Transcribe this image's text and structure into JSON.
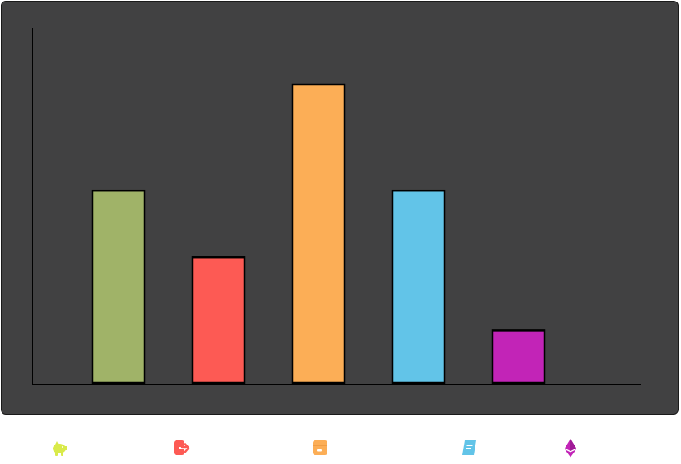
{
  "chart_data": {
    "type": "bar",
    "categories": [
      "piggy-bank",
      "sign-out",
      "box",
      "scroll",
      "ethereum"
    ],
    "values": [
      58,
      38,
      90,
      58,
      16
    ],
    "ylim": [
      0,
      100
    ],
    "title": "",
    "xlabel": "",
    "ylabel": "",
    "grid": false,
    "legend": "icons-below",
    "colors": [
      "#a0b368",
      "#fd5a54",
      "#fcae56",
      "#62c4e8",
      "#c224b7"
    ]
  },
  "legend": {
    "icons": [
      {
        "name": "piggy-bank-icon",
        "color": "#d9ea4a"
      },
      {
        "name": "sign-out-icon",
        "color": "#fd5a54"
      },
      {
        "name": "box-icon",
        "color": "#fcae56"
      },
      {
        "name": "scroll-icon",
        "color": "#62c4e8"
      },
      {
        "name": "ethereum-icon",
        "color": "#c224b7"
      }
    ]
  },
  "theme": {
    "panel_background": "#414142",
    "axis_color": "#000000",
    "bar_outline": "#000000"
  }
}
